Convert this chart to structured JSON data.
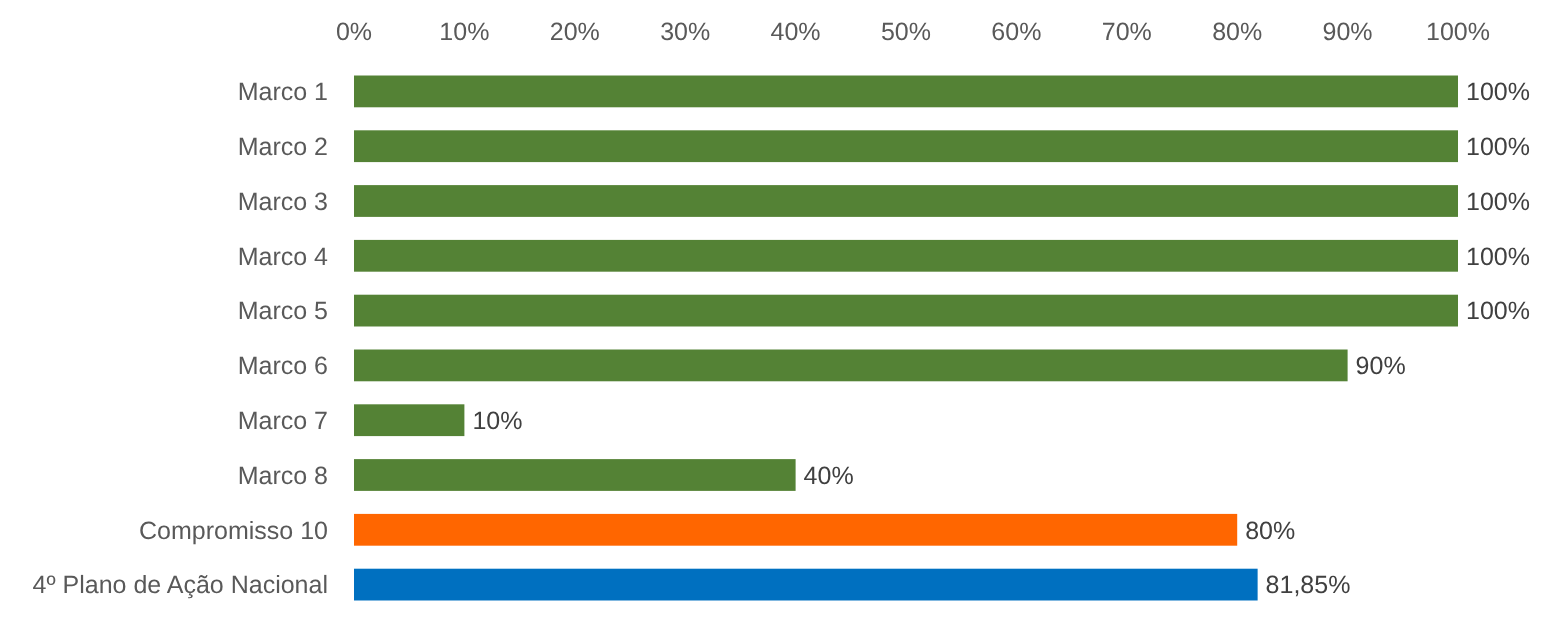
{
  "chart_data": {
    "type": "bar",
    "orientation": "horizontal",
    "categories": [
      "Marco 1",
      "Marco 2",
      "Marco 3",
      "Marco 4",
      "Marco 5",
      "Marco 6",
      "Marco 7",
      "Marco 8",
      "Compromisso 10",
      "4º Plano de Ação Nacional"
    ],
    "values": [
      100,
      100,
      100,
      100,
      100,
      90,
      10,
      40,
      80,
      81.85
    ],
    "colors": [
      "#548235",
      "#548235",
      "#548235",
      "#548235",
      "#548235",
      "#548235",
      "#548235",
      "#548235",
      "#ff6600",
      "#0070c0"
    ],
    "value_labels": [
      "100%",
      "100%",
      "100%",
      "100%",
      "100%",
      "90%",
      "10%",
      "40%",
      "80%",
      "81,85%"
    ],
    "xlim": [
      0,
      100
    ],
    "xticks": [
      {
        "value": 0,
        "label": "0%"
      },
      {
        "value": 10,
        "label": "10%"
      },
      {
        "value": 20,
        "label": "20%"
      },
      {
        "value": 30,
        "label": "30%"
      },
      {
        "value": 40,
        "label": "40%"
      },
      {
        "value": 50,
        "label": "50%"
      },
      {
        "value": 60,
        "label": "60%"
      },
      {
        "value": 70,
        "label": "70%"
      },
      {
        "value": 80,
        "label": "80%"
      },
      {
        "value": 90,
        "label": "90%"
      },
      {
        "value": 100,
        "label": "100%"
      }
    ],
    "grid": false
  }
}
